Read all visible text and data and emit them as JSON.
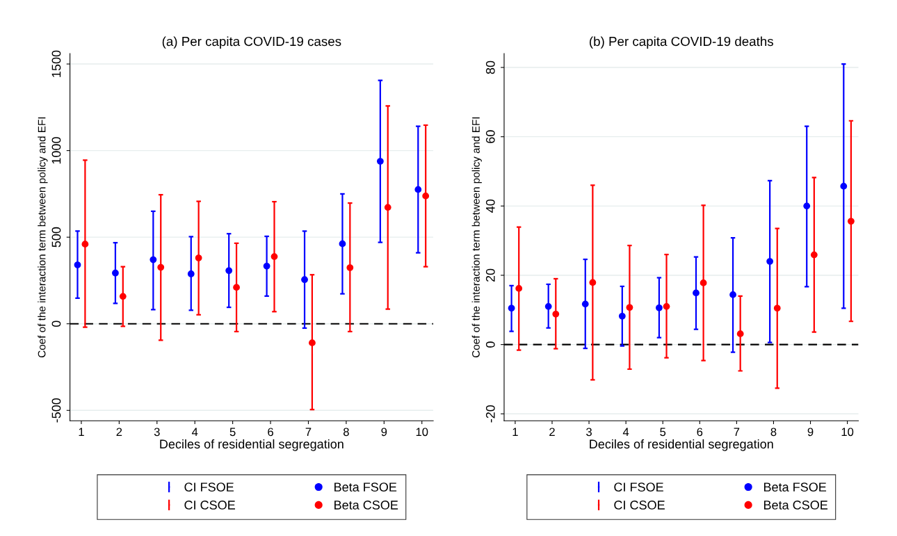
{
  "chart_data": [
    {
      "type": "scatter",
      "title": "(a) Per capita COVID-19 cases",
      "xlabel": "Deciles of residential segregation",
      "ylabel": "Coef of the interaction term between policy and EFI",
      "xlim": [
        0.7,
        10.3
      ],
      "xticks": [
        1,
        2,
        3,
        4,
        5,
        6,
        7,
        8,
        9,
        10
      ],
      "ylim": [
        -560,
        1560
      ],
      "yticks": [
        -500,
        0,
        500,
        1000,
        1500
      ],
      "grid": "y",
      "legend": "bottom",
      "annotations": [
        "CI FSOE",
        "CI CSOE"
      ],
      "ref_lines": [
        {
          "axis": "y",
          "value": 0,
          "color": "#000000",
          "line_style": "dashed"
        }
      ],
      "series": [
        {
          "name": "Beta FSOE",
          "color": "#0000ff",
          "marker": "circle",
          "x": [
            0.9,
            1.9,
            2.9,
            3.9,
            4.9,
            5.9,
            6.9,
            7.9,
            8.9,
            9.9
          ],
          "values": [
            340,
            293,
            370,
            288,
            307,
            333,
            255,
            462,
            938,
            775
          ],
          "errors": [
            [
              148,
              535
            ],
            [
              118,
              468
            ],
            [
              82,
              650
            ],
            [
              78,
              503
            ],
            [
              95,
              520
            ],
            [
              160,
              505
            ],
            [
              -25,
              535
            ],
            [
              173,
              750
            ],
            [
              470,
              1405
            ],
            [
              410,
              1140
            ]
          ]
        },
        {
          "name": "Beta CSOE",
          "color": "#ff0000",
          "marker": "circle",
          "x": [
            1.1,
            2.1,
            3.1,
            4.1,
            5.1,
            6.1,
            7.1,
            8.1,
            9.1,
            10.1
          ],
          "values": [
            460,
            158,
            326,
            380,
            210,
            388,
            -110,
            324,
            672,
            738
          ],
          "errors": [
            [
              -20,
              945
            ],
            [
              -15,
              330
            ],
            [
              -95,
              745
            ],
            [
              52,
              707
            ],
            [
              -45,
              465
            ],
            [
              70,
              705
            ],
            [
              -495,
              283
            ],
            [
              -45,
              697
            ],
            [
              85,
              1258
            ],
            [
              330,
              1147
            ]
          ]
        }
      ]
    },
    {
      "type": "scatter",
      "title": "(b) Per capita COVID-19 deaths",
      "xlabel": "Deciles of residential segregation",
      "ylabel": "Coef of the interaction term between policy and EFI",
      "xlim": [
        0.7,
        10.3
      ],
      "xticks": [
        1,
        2,
        3,
        4,
        5,
        6,
        7,
        8,
        9,
        10
      ],
      "ylim": [
        -22,
        84
      ],
      "yticks": [
        -20,
        0,
        20,
        40,
        60,
        80
      ],
      "grid": "y",
      "legend": "bottom",
      "annotations": [
        "CI FSOE",
        "CI CSOE"
      ],
      "ref_lines": [
        {
          "axis": "y",
          "value": 0,
          "color": "#000000",
          "line_style": "dashed"
        }
      ],
      "series": [
        {
          "name": "Beta FSOE",
          "color": "#0000ff",
          "marker": "circle",
          "x": [
            0.9,
            1.9,
            2.9,
            3.9,
            4.9,
            5.9,
            6.9,
            7.9,
            8.9,
            9.9
          ],
          "values": [
            10.5,
            11,
            11.7,
            8.2,
            10.6,
            14.9,
            14.4,
            24,
            40,
            45.7
          ],
          "errors": [
            [
              3.8,
              17
            ],
            [
              4.8,
              17.4
            ],
            [
              -1.1,
              24.6
            ],
            [
              -0.4,
              16.8
            ],
            [
              2,
              19.3
            ],
            [
              4.4,
              25.3
            ],
            [
              -2.2,
              30.8
            ],
            [
              0.6,
              47.3
            ],
            [
              16.7,
              63
            ],
            [
              10.5,
              81
            ]
          ]
        },
        {
          "name": "Beta CSOE",
          "color": "#ff0000",
          "marker": "circle",
          "x": [
            1.1,
            2.1,
            3.1,
            4.1,
            5.1,
            6.1,
            7.1,
            8.1,
            9.1,
            10.1
          ],
          "values": [
            16.2,
            8.8,
            17.9,
            10.7,
            11,
            17.8,
            3.1,
            10.5,
            25.9,
            35.6
          ],
          "errors": [
            [
              -1.6,
              33.9
            ],
            [
              -1.2,
              19
            ],
            [
              -10.2,
              46
            ],
            [
              -7.1,
              28.6
            ],
            [
              -3.8,
              26
            ],
            [
              -4.6,
              40.2
            ],
            [
              -7.6,
              14
            ],
            [
              -12.6,
              33.5
            ],
            [
              3.6,
              48.2
            ],
            [
              6.7,
              64.6
            ]
          ]
        }
      ]
    }
  ]
}
